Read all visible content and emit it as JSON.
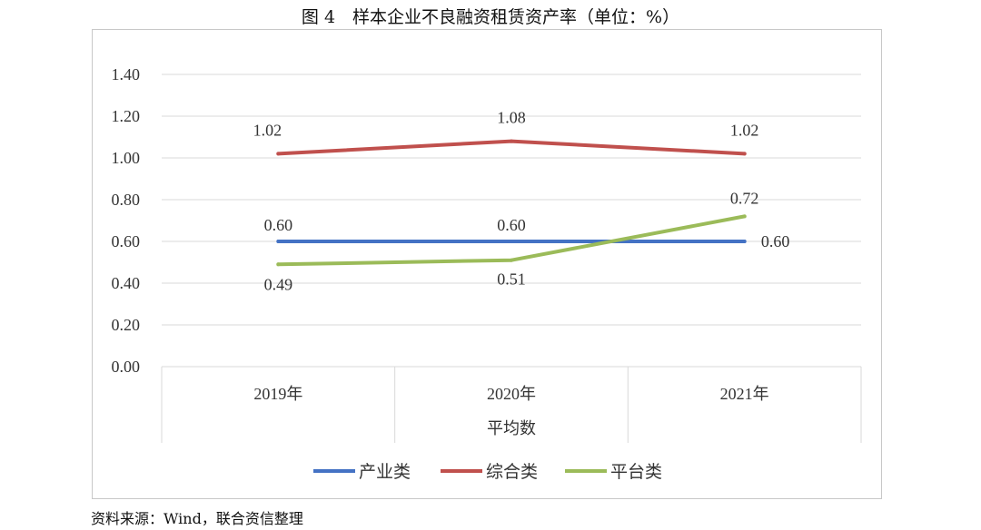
{
  "figure_title": "图 4　样本企业不良融资租赁资产率（单位：%）",
  "source_note": "资料来源：Wind，联合资信整理",
  "colors": {
    "产业类": "#4472C4",
    "综合类": "#C0504D",
    "平台类": "#9BBB59"
  },
  "chart_data": {
    "type": "line",
    "title": "图 4　样本企业不良融资租赁资产率（单位：%）",
    "categories": [
      "2019年",
      "2020年",
      "2021年"
    ],
    "xlabel": "平均数",
    "ylabel": "",
    "ylim": [
      0,
      1.4
    ],
    "yticks": [
      "0.00",
      "0.20",
      "0.40",
      "0.60",
      "0.80",
      "1.00",
      "1.20",
      "1.40"
    ],
    "grid": true,
    "legend": "bottom",
    "series": [
      {
        "name": "产业类",
        "values": [
          0.6,
          0.6,
          0.6
        ],
        "labels": [
          "0.60",
          "0.60",
          "0.60"
        ]
      },
      {
        "name": "综合类",
        "values": [
          1.02,
          1.08,
          1.02
        ],
        "labels": [
          "1.02",
          "1.08",
          "1.02"
        ]
      },
      {
        "name": "平台类",
        "values": [
          0.49,
          0.51,
          0.72
        ],
        "labels": [
          "0.49",
          "0.51",
          "0.72"
        ]
      }
    ]
  }
}
